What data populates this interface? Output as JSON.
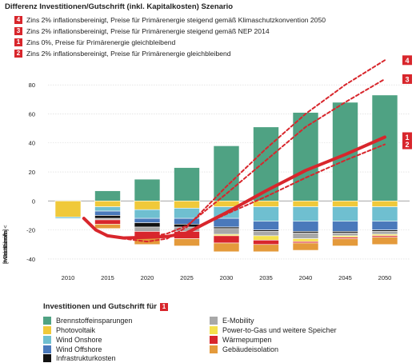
{
  "title": "Differenz Investitionen/Gutschrift (inkl. Kapitalkosten) Szenario",
  "scenarios": [
    {
      "badge": "4",
      "text": "Zins 2% inflationsbereinigt, Preise für Primärenergie steigend gemäß Klimaschutzkonvention 2050"
    },
    {
      "badge": "3",
      "text": "Zins 2% inflationsbereinigt, Preise für Primärenergie steigend gemäß NEP 2014"
    },
    {
      "badge": "1",
      "text": "Zins 0%, Preise für Primärenergie gleichbleibend"
    },
    {
      "badge": "2",
      "text": "Zins 2% inflationsbereinigt, Preise für Primärenergie gleichbleibend"
    }
  ],
  "legend_title": "Investitionen und Gutschrift für",
  "legend_badge": "1",
  "chart_data": {
    "type": "bar",
    "stacked": true,
    "ylabel_left": "Investitionen <",
    "ylabel_unit": "[Mrd. Euro/a]",
    "ylabel_right": "> Gutschrift",
    "ylim": [
      -45,
      90
    ],
    "yticks": [
      -40,
      -20,
      0,
      20,
      40,
      60,
      80
    ],
    "categories": [
      "2010",
      "2015",
      "2020",
      "2025",
      "2030",
      "2035",
      "2040",
      "2045",
      "2050"
    ],
    "series": [
      {
        "name": "Brennstoffeinsparungen",
        "color": "#4fa283",
        "values": [
          0,
          7,
          15,
          23,
          38,
          51,
          61,
          68,
          73
        ]
      },
      {
        "name": "Photovoltaik",
        "color": "#f0c93a",
        "values": [
          -11,
          -4,
          -6,
          -5,
          -4,
          -4,
          -4,
          -4,
          -4
        ]
      },
      {
        "name": "Wind Onshore",
        "color": "#6fbfd0",
        "values": [
          -1,
          -3,
          -6,
          -7,
          -8,
          -10,
          -10,
          -10,
          -10
        ]
      },
      {
        "name": "Wind Offshore",
        "color": "#4a79bb",
        "values": [
          0,
          -3,
          -3,
          -4,
          -6,
          -6,
          -7,
          -7,
          -6
        ]
      },
      {
        "name": "Infrastrukturkosten",
        "color": "#111111",
        "values": [
          0,
          -2,
          -3,
          -2,
          -1,
          -1,
          -1,
          -1,
          -1
        ]
      },
      {
        "name": "E-Mobility",
        "color": "#a8a8a8",
        "values": [
          0,
          -1,
          -3,
          -3,
          -4,
          -3,
          -4,
          -2,
          -2
        ]
      },
      {
        "name": "Power-to-Gas und weitere Speicher",
        "color": "#f4e04d",
        "values": [
          0,
          0,
          0,
          0,
          -1,
          -3,
          -2,
          -1,
          -1
        ]
      },
      {
        "name": "Wärmepumpen",
        "color": "#d8262c",
        "values": [
          0,
          -3,
          -4,
          -5,
          -5,
          -3,
          -1,
          -1,
          -1
        ]
      },
      {
        "name": "Gebäudeisolation",
        "color": "#e49a3b",
        "values": [
          0,
          -3,
          -5,
          -5,
          -6,
          -5,
          -5,
          -5,
          -5
        ]
      }
    ],
    "lines": [
      {
        "badge": "1",
        "style": "solid",
        "x": [
          2012,
          2013.5,
          2015,
          2017,
          2020,
          2022.5,
          2025,
          2030,
          2035,
          2040,
          2045,
          2050
        ],
        "values": [
          -12,
          -20,
          -24,
          -25.5,
          -25,
          -24.5,
          -22,
          -8,
          7,
          21,
          32,
          44
        ]
      },
      {
        "badge": "2",
        "style": "dashed",
        "x": [
          2012,
          2013.5,
          2015,
          2017,
          2020,
          2022.5,
          2025,
          2030,
          2035,
          2040,
          2045,
          2050
        ],
        "values": [
          -12,
          -20,
          -24,
          -25.5,
          -25,
          -24.5,
          -22,
          -9,
          3,
          16,
          28,
          39
        ]
      },
      {
        "badge": "3",
        "style": "dashed",
        "x": [
          2012,
          2013.5,
          2015,
          2017,
          2020,
          2022.5,
          2025,
          2030,
          2035,
          2040,
          2045,
          2050
        ],
        "values": [
          -12,
          -20,
          -24,
          -25.5,
          -25,
          -22.5,
          -17,
          5,
          28,
          51,
          68,
          84
        ]
      },
      {
        "badge": "4",
        "style": "dashed",
        "x": [
          2012,
          2013.5,
          2015,
          2017,
          2020,
          2022.5,
          2025,
          2030,
          2035,
          2040,
          2045,
          2050
        ],
        "values": [
          -12,
          -20,
          -24,
          -26,
          -28,
          -26,
          -18,
          10,
          36,
          60,
          80,
          97
        ]
      }
    ]
  }
}
